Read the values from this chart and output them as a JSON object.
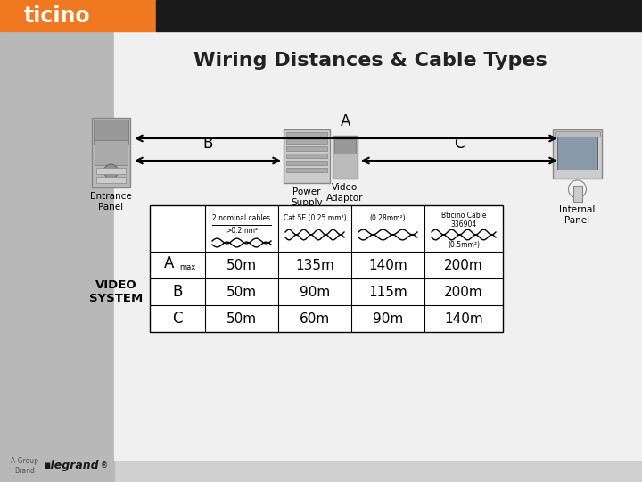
{
  "title": "Wiring Distances & Cable Types",
  "bg_left_color": "#c8c8c8",
  "bg_right_color": "#e8e8e8",
  "header_orange": "#f07820",
  "header_black": "#1a1a1a",
  "white_area": "#f2f2f2",
  "labels": {
    "entrance": "Entrance\nPanel",
    "internal": "Internal\nPanel",
    "power_supply": "Power\nSupply",
    "video_adaptor": "Video\nAdaptor"
  },
  "arrow_A_label": "A",
  "arrow_B_label": "B",
  "arrow_C_label": "C",
  "table_col_headers": [
    "2 nominal cables",
    "Cat 5E (0.25 mm²)",
    "(0.28mm²)",
    "Bticino Cable\n336904\n(0.5mm²)"
  ],
  "table_sub_header": ">0.2mm²",
  "table_rows": [
    [
      "A",
      "max",
      "50m",
      "135m",
      "140m",
      "200m"
    ],
    [
      "B",
      "",
      "50m",
      "90m",
      "115m",
      "200m"
    ],
    [
      "C",
      "",
      "50m",
      "60m",
      "90m",
      "140m"
    ]
  ],
  "video_system_label": "VIDEO\nSYSTEM",
  "brand_line1": "A Group",
  "brand_line2": "Brand",
  "legrand_text": "■legrand®"
}
